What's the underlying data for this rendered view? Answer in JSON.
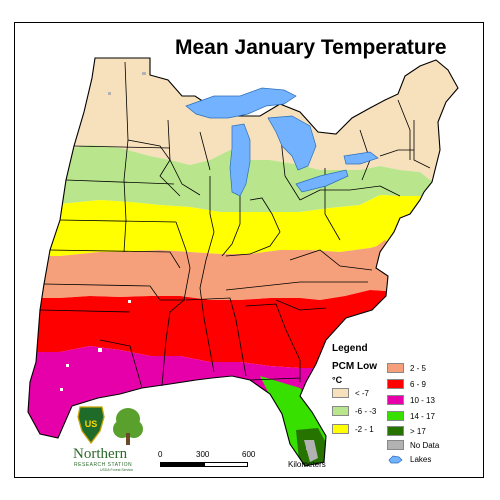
{
  "title": "Mean January Temperature",
  "legend": {
    "heading": "Legend",
    "model": "PCM Low",
    "unit": "°C",
    "items": [
      {
        "label": "< -7",
        "color": "#f7e0bc"
      },
      {
        "label": "-6 - -3",
        "color": "#b9e68c"
      },
      {
        "label": "-2 - 1",
        "color": "#ffff00"
      },
      {
        "label": "2 - 5",
        "color": "#f5a07a"
      },
      {
        "label": "6 - 9",
        "color": "#ff0000"
      },
      {
        "label": "10 - 13",
        "color": "#e600a9"
      },
      {
        "label": "14 - 17",
        "color": "#38e000"
      },
      {
        "label": "> 17",
        "color": "#267300"
      },
      {
        "label": "No Data",
        "color": "#b2b2b2"
      },
      {
        "label": "Lakes",
        "color": "#73b2ff"
      }
    ]
  },
  "scale": {
    "ticks": [
      "0",
      "300",
      "600"
    ],
    "unit": "Kilometers"
  },
  "logo": {
    "badge": "US",
    "name": "Northern",
    "subtitle": "RESEARCH STATION",
    "agency": "USDA Forest Service"
  }
}
